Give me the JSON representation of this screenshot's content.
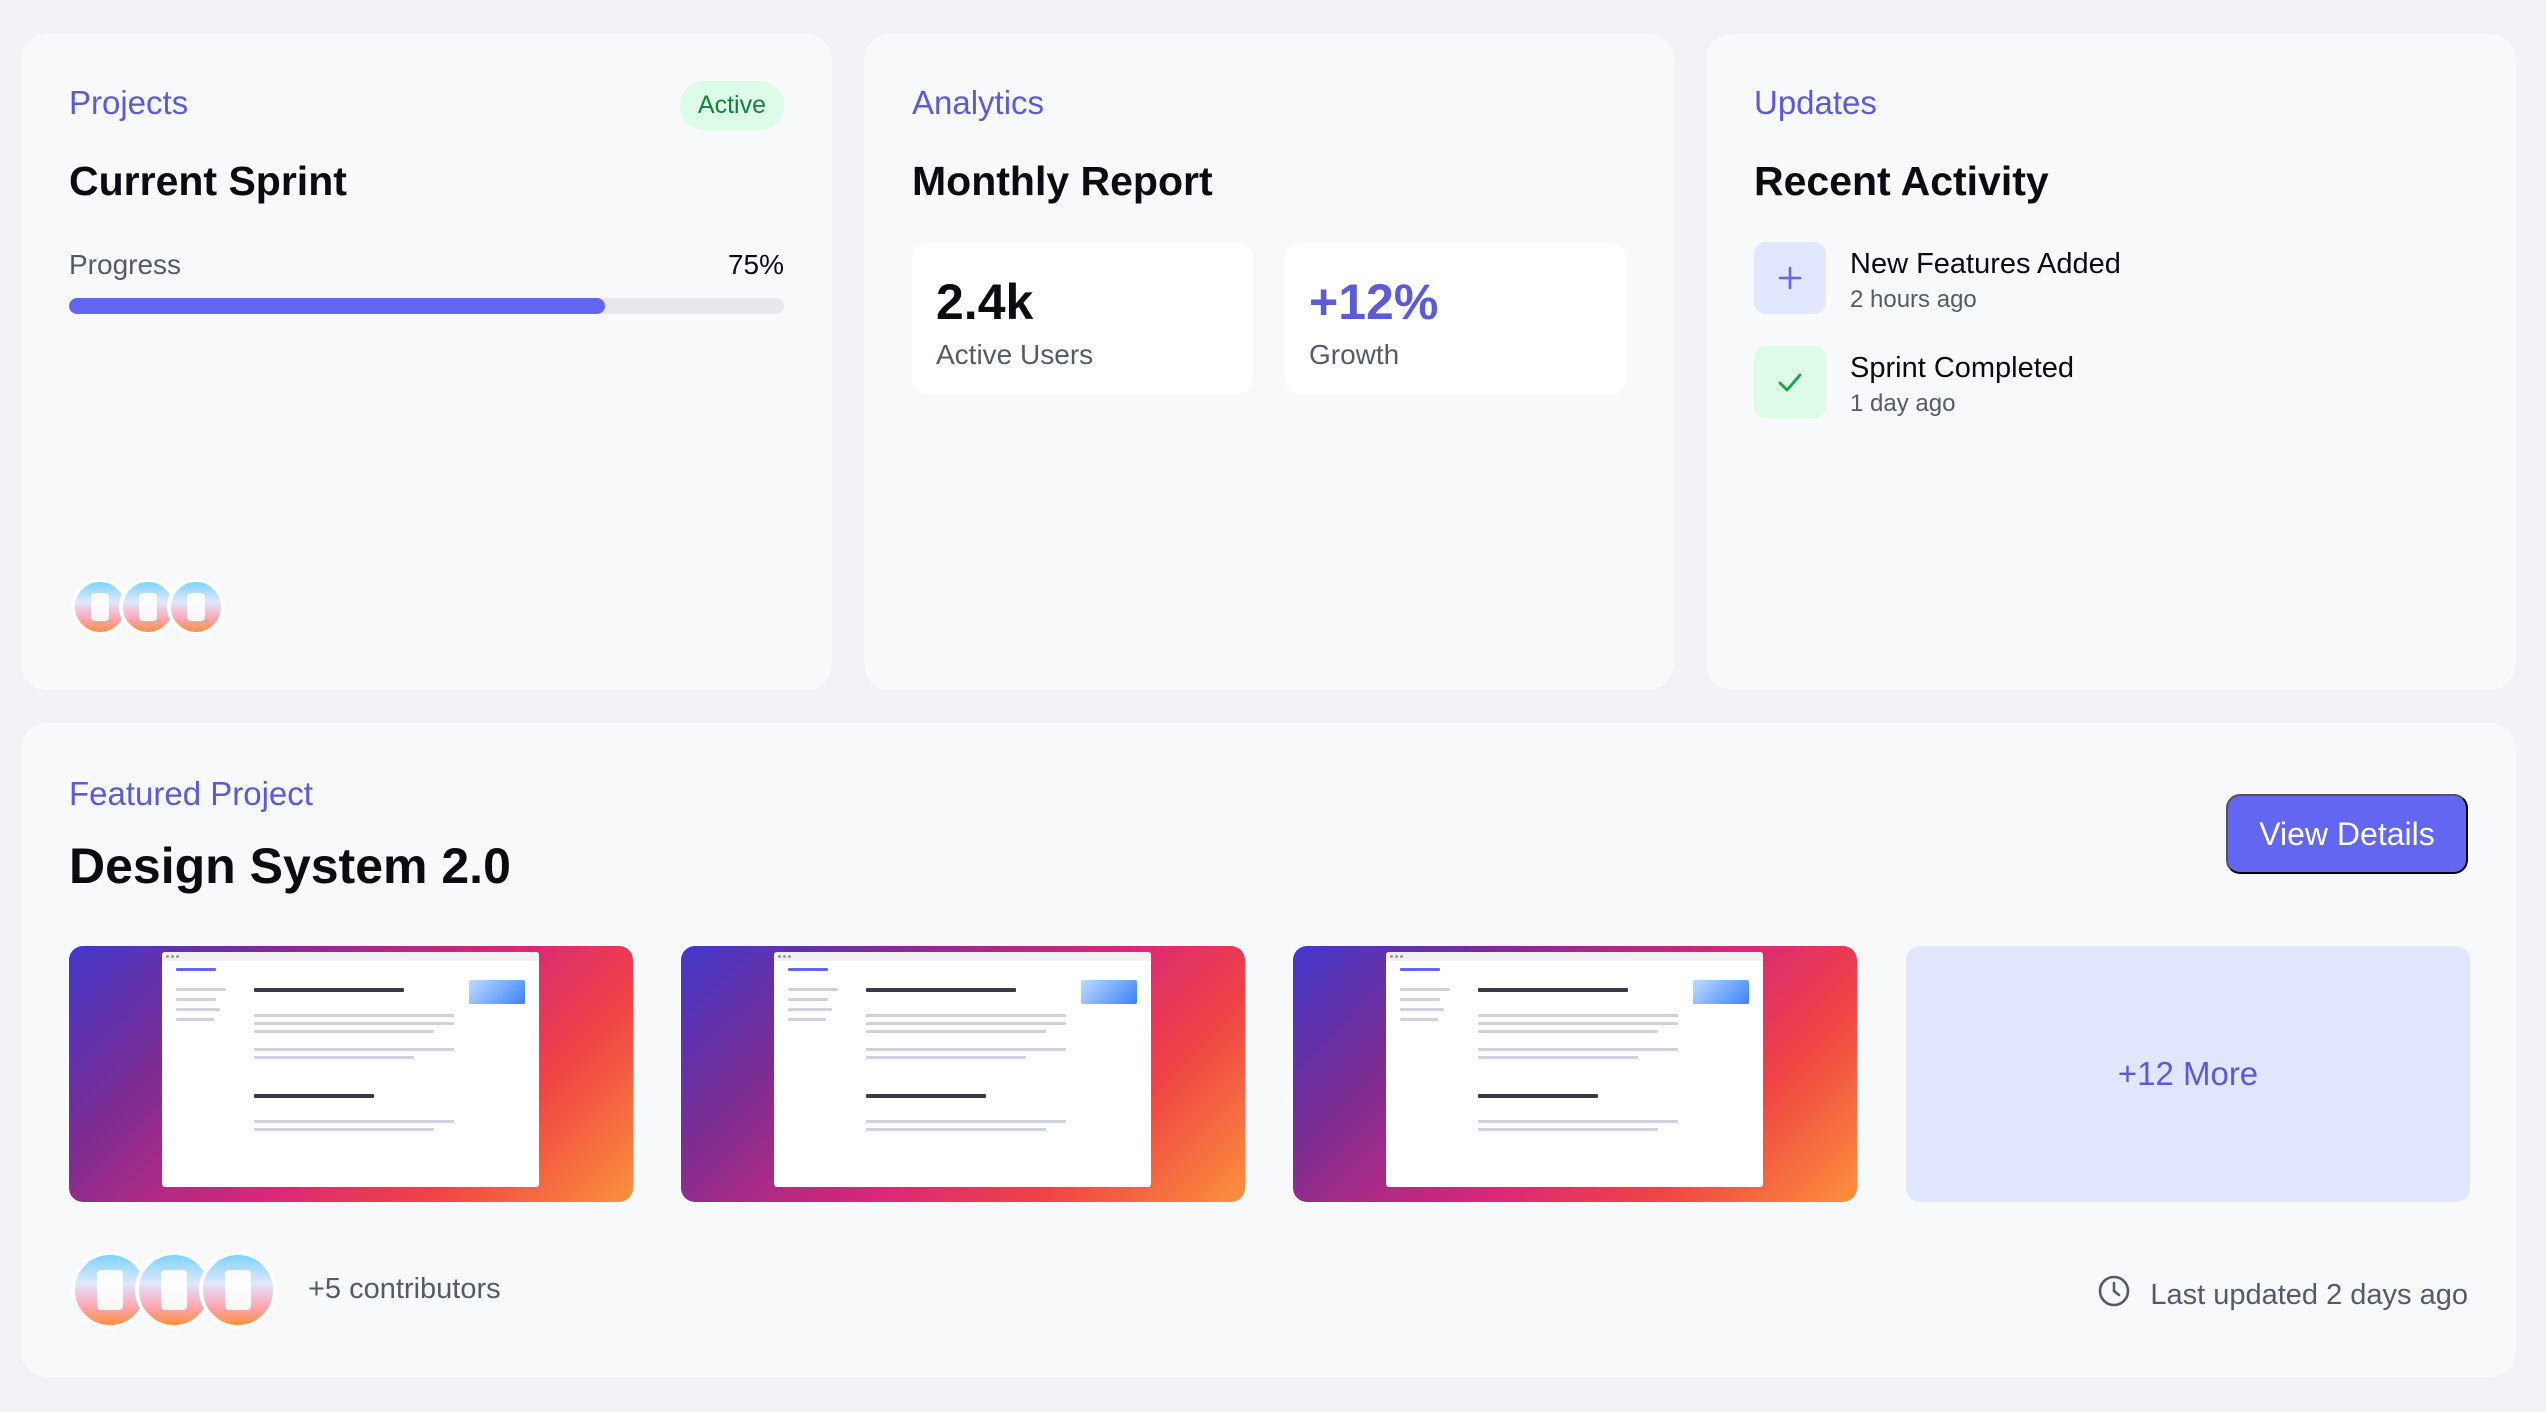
{
  "projects": {
    "eyebrow": "Projects",
    "badge": "Active",
    "title": "Current Sprint",
    "progress_label": "Progress",
    "progress_value": "75%",
    "progress_fraction": 0.75,
    "avatars": [
      "avatar",
      "avatar",
      "avatar"
    ]
  },
  "analytics": {
    "eyebrow": "Analytics",
    "title": "Monthly Report",
    "stats": [
      {
        "value": "2.4k",
        "label": "Active Users"
      },
      {
        "value": "+12%",
        "label": "Growth"
      }
    ]
  },
  "updates": {
    "eyebrow": "Updates",
    "title": "Recent Activity",
    "items": [
      {
        "icon": "plus-icon",
        "title": "New Features Added",
        "time": "2 hours ago"
      },
      {
        "icon": "check-icon",
        "title": "Sprint Completed",
        "time": "1 day ago"
      }
    ]
  },
  "featured": {
    "eyebrow": "Featured Project",
    "title": "Design System 2.0",
    "button_label": "View Details",
    "thumbnails": [
      "screenshot",
      "screenshot",
      "screenshot"
    ],
    "more_label": "+12 More",
    "contributors_label": "+5 contributors",
    "last_updated": "Last updated 2 days ago"
  },
  "colors": {
    "accent": "#6366f1",
    "accent_text": "#5b5bd6",
    "success_bg": "#dcfce7",
    "success_text": "#15803d",
    "card_bg": "#f8f9fb",
    "page_bg": "#f0f2f5"
  }
}
